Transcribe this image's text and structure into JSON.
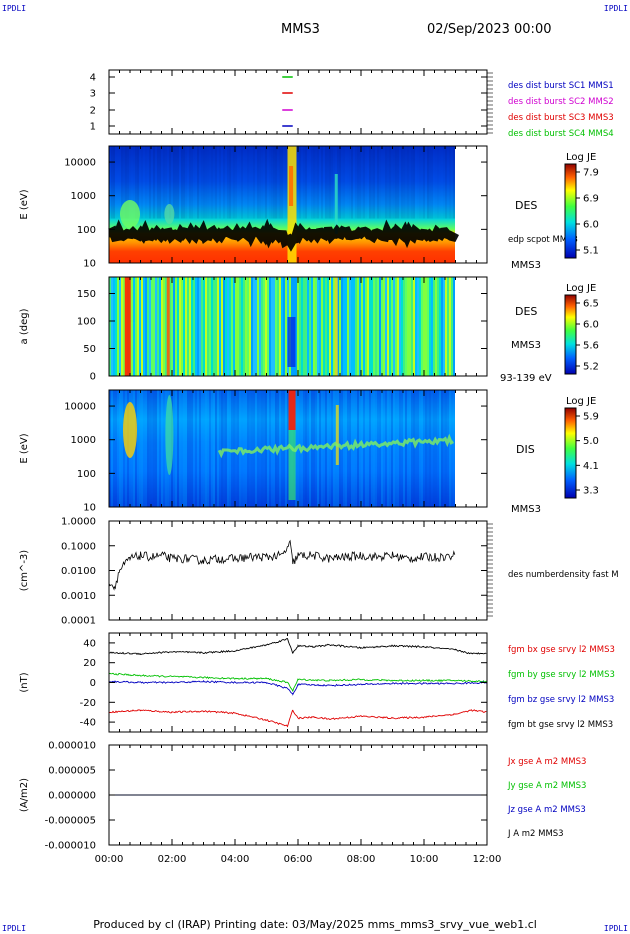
{
  "corners": {
    "top_left": "IPDLI",
    "top_right": "IPDLI",
    "bottom_left": "IPDLI",
    "bottom_right": "IPDLI"
  },
  "header": {
    "spacecraft": "MMS3",
    "datetime": "02/Sep/2023 00:00"
  },
  "footer": {
    "text": "Produced by cl (IRAP)   Printing date: 03/May/2025   mms_mms3_srvy_vue_web1.cl"
  },
  "x_axis": {
    "ticks": [
      "00:00",
      "02:00",
      "04:00",
      "06:00",
      "08:00",
      "10:00",
      "12:00"
    ]
  },
  "colors": {
    "red": "#e00000",
    "green": "#00c000",
    "blue": "#0000c0",
    "magenta": "#d000d0",
    "black": "#000000"
  },
  "chart_data": [
    {
      "type": "line",
      "name": "burst-availability",
      "yticks": [
        "4",
        "3",
        "2",
        "1"
      ],
      "series": [
        {
          "name": "des dist burst SC1 MMS1",
          "color": "#0000c0",
          "level": 1,
          "x": [
            "05:30",
            "05:50"
          ]
        },
        {
          "name": "des dist burst SC2 MMS2",
          "color": "#d000d0",
          "level": 2,
          "x": [
            "05:30",
            "05:50"
          ]
        },
        {
          "name": "des dist burst SC3 MMS3",
          "color": "#e00000",
          "level": 3,
          "x": [
            "05:30",
            "05:50"
          ]
        },
        {
          "name": "des dist burst SC4 MMS4",
          "color": "#00c000",
          "level": 4,
          "x": [
            "05:30",
            "05:50"
          ]
        }
      ]
    },
    {
      "type": "heatmap",
      "name": "des-energy-spectrogram",
      "ylabel": "E (eV)",
      "yticks": [
        "10000",
        "1000",
        "100",
        "10"
      ],
      "ylim": [
        10,
        30000
      ],
      "yscale": "log",
      "instrument_label": "DES",
      "overlay_label": "edp scpot MMS3",
      "spacecraft_label": "MMS3",
      "colorbar": {
        "title": "Log JE",
        "ticks": [
          "7.9",
          "6.9",
          "6.0",
          "5.1"
        ]
      }
    },
    {
      "type": "heatmap",
      "name": "des-pitch-angle",
      "ylabel": "a (deg)",
      "yticks": [
        "150",
        "100",
        "50",
        "0"
      ],
      "ylim": [
        0,
        180
      ],
      "instrument_label": "DES",
      "spacecraft_label": "MMS3",
      "energy_label": "93-139 eV",
      "colorbar": {
        "title": "Log JE",
        "ticks": [
          "6.5",
          "6.0",
          "5.6",
          "5.2"
        ]
      }
    },
    {
      "type": "heatmap",
      "name": "dis-energy-spectrogram",
      "ylabel": "E (eV)",
      "yticks": [
        "10000",
        "1000",
        "100",
        "10"
      ],
      "ylim": [
        10,
        30000
      ],
      "yscale": "log",
      "instrument_label": "DIS",
      "spacecraft_label": "MMS3",
      "colorbar": {
        "title": "Log JE",
        "ticks": [
          "5.9",
          "5.0",
          "4.1",
          "3.3"
        ]
      }
    },
    {
      "type": "line",
      "name": "number-density",
      "ylabel": "(cm^-3)",
      "yticks": [
        "1.0000",
        "0.1000",
        "0.0100",
        "0.0010",
        "0.0001"
      ],
      "ylim": [
        0.0001,
        1.0
      ],
      "yscale": "log",
      "series": [
        {
          "name": "des numberdensity fast M",
          "color": "#000000",
          "x": [
            "00:00",
            "00:10",
            "00:20",
            "00:40",
            "01:00",
            "01:20",
            "01:40",
            "02:00",
            "02:30",
            "03:00",
            "03:30",
            "04:00",
            "04:30",
            "05:00",
            "05:30",
            "05:45",
            "05:50",
            "06:00",
            "06:30",
            "07:00",
            "07:30",
            "08:00",
            "08:30",
            "09:00",
            "09:30",
            "10:00",
            "10:30",
            "11:00"
          ],
          "values": [
            0.004,
            0.002,
            0.01,
            0.03,
            0.04,
            0.035,
            0.04,
            0.03,
            0.03,
            0.025,
            0.03,
            0.03,
            0.035,
            0.035,
            0.04,
            0.12,
            0.02,
            0.04,
            0.04,
            0.03,
            0.035,
            0.04,
            0.035,
            0.04,
            0.03,
            0.035,
            0.035,
            0.04
          ]
        }
      ]
    },
    {
      "type": "line",
      "name": "magnetic-field",
      "ylabel": "(nT)",
      "yticks": [
        "40",
        "20",
        "0",
        "-20",
        "-40"
      ],
      "ylim": [
        -50,
        50
      ],
      "series": [
        {
          "name": "fgm bx gse srvy l2 MMS3",
          "color": "#e00000",
          "x": [
            "00:00",
            "01:00",
            "02:00",
            "03:00",
            "04:00",
            "05:00",
            "05:40",
            "05:50",
            "06:00",
            "06:30",
            "07:00",
            "08:00",
            "09:00",
            "10:00",
            "11:00",
            "11:30",
            "12:00"
          ],
          "values": [
            -30,
            -28,
            -30,
            -29,
            -31,
            -38,
            -44,
            -28,
            -36,
            -35,
            -37,
            -34,
            -36,
            -35,
            -32,
            -28,
            -30
          ]
        },
        {
          "name": "fgm by gse srvy l2 MMS3",
          "color": "#00c000",
          "x": [
            "00:00",
            "01:00",
            "02:00",
            "03:00",
            "04:00",
            "05:00",
            "05:40",
            "05:50",
            "06:00",
            "07:00",
            "08:00",
            "09:00",
            "10:00",
            "11:00",
            "12:00"
          ],
          "values": [
            9,
            7,
            6,
            5,
            4,
            4,
            0,
            -8,
            3,
            2,
            3,
            2,
            2,
            2,
            1
          ]
        },
        {
          "name": "fgm bz gse srvy l2 MMS3",
          "color": "#0000c0",
          "x": [
            "00:00",
            "01:00",
            "02:00",
            "03:00",
            "04:00",
            "05:00",
            "05:40",
            "05:50",
            "06:00",
            "07:00",
            "08:00",
            "09:00",
            "10:00",
            "11:00",
            "12:00"
          ],
          "values": [
            1,
            0,
            0,
            1,
            0,
            0,
            -6,
            -12,
            -2,
            -3,
            -2,
            -1,
            -1,
            -1,
            0
          ]
        },
        {
          "name": "fgm bt gse srvy l2 MMS3",
          "color": "#000000",
          "x": [
            "00:00",
            "01:00",
            "02:00",
            "03:00",
            "04:00",
            "05:00",
            "05:40",
            "05:50",
            "06:00",
            "06:30",
            "07:00",
            "08:00",
            "09:00",
            "10:00",
            "11:00",
            "11:30",
            "12:00"
          ],
          "values": [
            30,
            29,
            31,
            30,
            32,
            38,
            44,
            30,
            37,
            36,
            38,
            35,
            37,
            36,
            33,
            29,
            30
          ]
        }
      ]
    },
    {
      "type": "line",
      "name": "current-density",
      "ylabel": "(A/m2)",
      "yticks": [
        "0.000010",
        "0.000005",
        "0.000000",
        "-0.000005",
        "-0.000010"
      ],
      "ylim": [
        -1e-05,
        1e-05
      ],
      "series": [
        {
          "name": "Jx gse A m2 MMS3",
          "color": "#e00000",
          "x": [
            "00:00",
            "12:00"
          ],
          "values": [
            0,
            0
          ]
        },
        {
          "name": "Jy gse A m2 MMS3",
          "color": "#00c000",
          "x": [
            "00:00",
            "12:00"
          ],
          "values": [
            0,
            0
          ]
        },
        {
          "name": "Jz gse A m2 MMS3",
          "color": "#0000c0",
          "x": [
            "00:00",
            "12:00"
          ],
          "values": [
            0,
            0
          ]
        },
        {
          "name": "J A m2 MMS3",
          "color": "#000000",
          "x": [
            "00:00",
            "12:00"
          ],
          "values": [
            0,
            0
          ]
        }
      ]
    }
  ]
}
